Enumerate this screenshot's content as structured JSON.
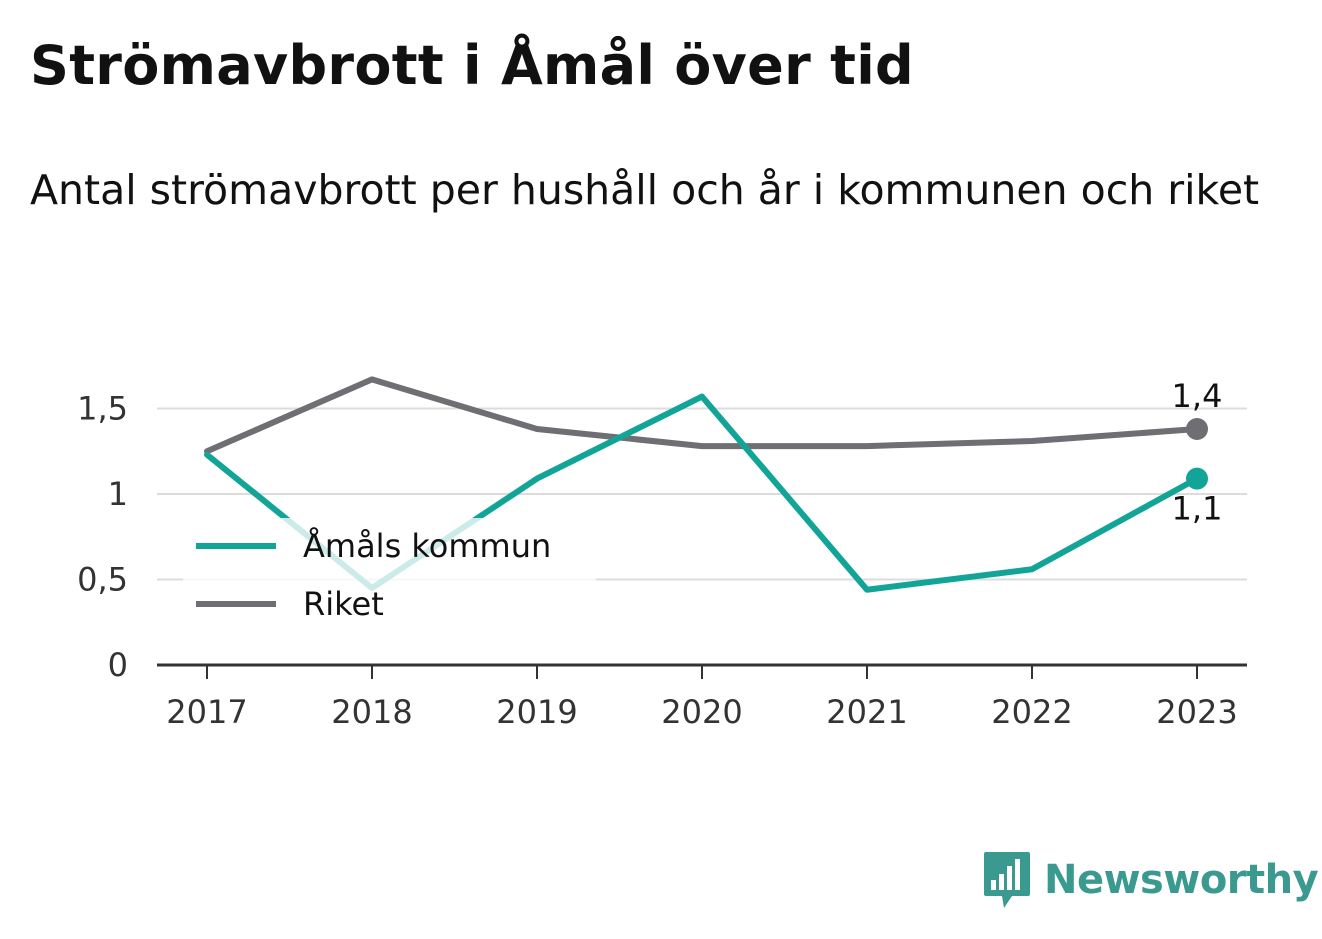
{
  "title": "Strömavbrott i Åmål över tid",
  "subtitle": "Antal strömavbrott per hushåll och år i kommunen och riket",
  "brand": "Newsworthy",
  "colors": {
    "amal": "#12a597",
    "riket": "#6e6e73",
    "grid": "#dcdcdc",
    "axis": "#333333",
    "brand": "#3b9a90"
  },
  "chart_data": {
    "type": "line",
    "x": [
      "2017",
      "2018",
      "2019",
      "2020",
      "2021",
      "2022",
      "2023"
    ],
    "y_ticks": [
      {
        "value": 0,
        "label": "0"
      },
      {
        "value": 0.5,
        "label": "0,5"
      },
      {
        "value": 1,
        "label": "1"
      },
      {
        "value": 1.5,
        "label": "1,5"
      }
    ],
    "ylim": [
      0,
      1.75
    ],
    "grid": true,
    "legend_position": "bottom-left",
    "series": [
      {
        "name": "Åmåls kommun",
        "values": [
          1.23,
          0.45,
          1.09,
          1.57,
          0.44,
          0.56,
          1.09
        ],
        "end_label": "1,1",
        "color": "#12a597"
      },
      {
        "name": "Riket",
        "values": [
          1.25,
          1.67,
          1.38,
          1.28,
          1.28,
          1.31,
          1.38
        ],
        "end_label": "1,4",
        "color": "#6e6e73"
      }
    ]
  }
}
